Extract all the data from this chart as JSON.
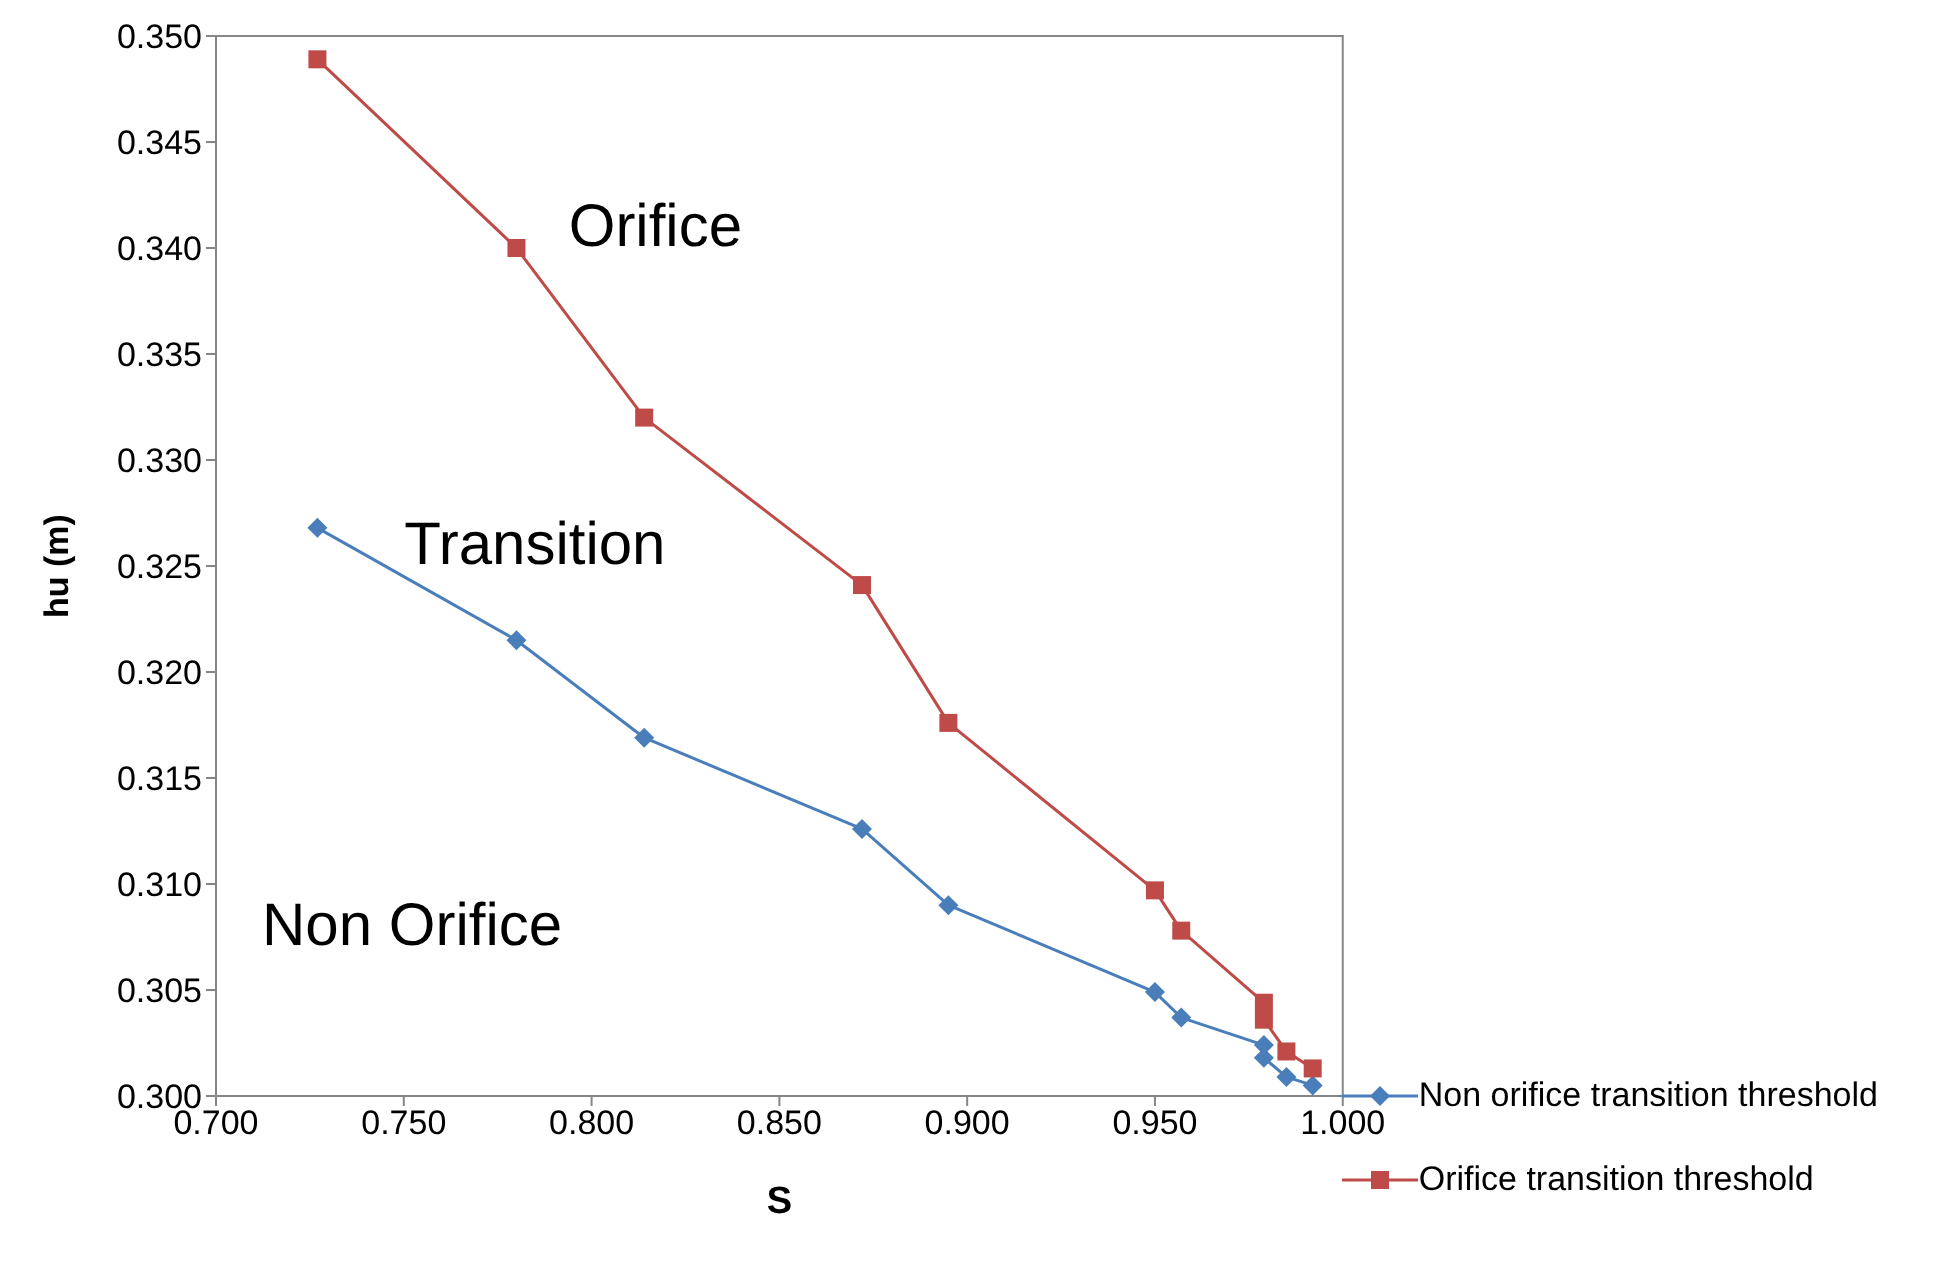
{
  "chart_data": {
    "type": "line",
    "xlabel": "S",
    "ylabel": "hu (m)",
    "xlim": [
      0.7,
      1.0
    ],
    "xticks": [
      {
        "value": 0.7,
        "label": "0.700"
      },
      {
        "value": 0.75,
        "label": "0.750"
      },
      {
        "value": 0.8,
        "label": "0.800"
      },
      {
        "value": 0.85,
        "label": "0.850"
      },
      {
        "value": 0.9,
        "label": "0.900"
      },
      {
        "value": 0.95,
        "label": "0.950"
      },
      {
        "value": 1.0,
        "label": "1.000"
      }
    ],
    "ylim": [
      0.3,
      0.35
    ],
    "yticks": [
      {
        "value": 0.3,
        "label": "0.300"
      },
      {
        "value": 0.305,
        "label": "0.305"
      },
      {
        "value": 0.31,
        "label": "0.310"
      },
      {
        "value": 0.315,
        "label": "0.315"
      },
      {
        "value": 0.32,
        "label": "0.320"
      },
      {
        "value": 0.325,
        "label": "0.325"
      },
      {
        "value": 0.33,
        "label": "0.330"
      },
      {
        "value": 0.335,
        "label": "0.335"
      },
      {
        "value": 0.34,
        "label": "0.340"
      },
      {
        "value": 0.345,
        "label": "0.345"
      },
      {
        "value": 0.35,
        "label": "0.350"
      }
    ],
    "grid": false,
    "legend": "bottom right",
    "x": [
      0.727,
      0.78,
      0.814,
      0.872,
      0.895,
      0.95,
      0.957,
      0.979,
      0.979,
      0.985,
      0.992
    ],
    "series": [
      {
        "name": "Non orifice transition threshold",
        "color": "#4a7ebb",
        "marker": "diamond",
        "values": [
          0.3268,
          0.3215,
          0.3169,
          0.3126,
          0.309,
          0.3049,
          0.3037,
          0.3024,
          0.3018,
          0.3009,
          0.3005
        ]
      },
      {
        "name": "Orifice transition threshold",
        "color": "#be4b48",
        "marker": "square",
        "values": [
          0.3489,
          0.34,
          0.332,
          0.3241,
          0.3176,
          0.3097,
          0.3078,
          0.3044,
          0.3036,
          0.3021,
          0.3013
        ]
      }
    ],
    "annotations": [
      "Orifice",
      "Transition",
      "Non Orifice"
    ]
  }
}
